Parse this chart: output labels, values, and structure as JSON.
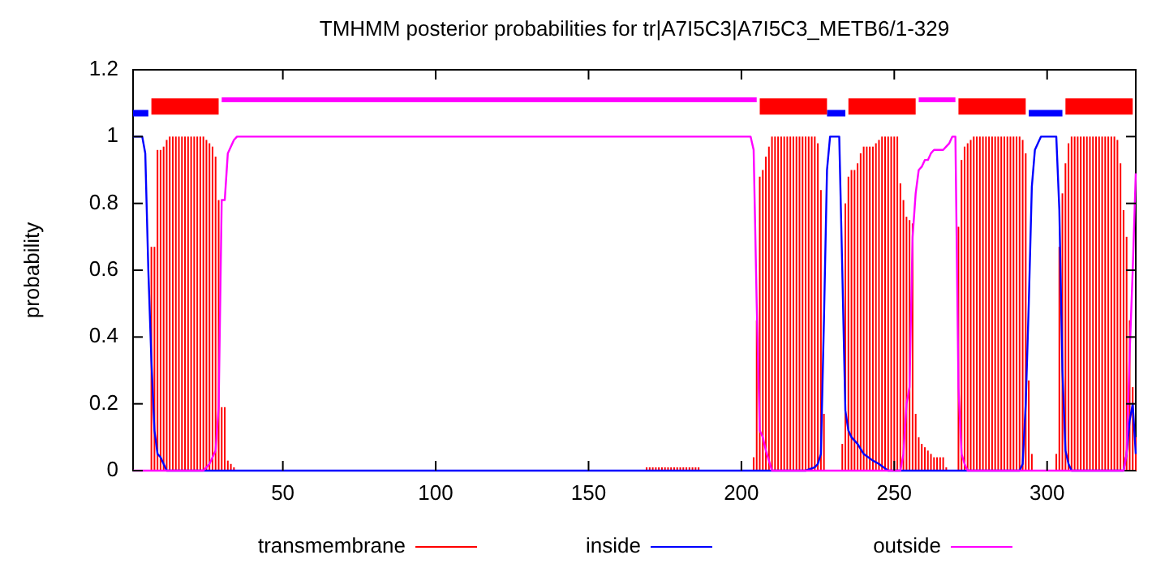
{
  "chart_data": {
    "type": "line",
    "title": "TMHMM posterior probabilities for tr|A7I5C3|A7I5C3_METB6/1-329",
    "ylabel": "probability",
    "xlim": [
      1,
      329
    ],
    "xticks": [
      50,
      100,
      150,
      200,
      250,
      300
    ],
    "ylim": [
      0,
      1.2
    ],
    "yticks": [
      0,
      0.2,
      0.4,
      0.6,
      0.8,
      1,
      1.2
    ],
    "legend": "bottom",
    "series": [
      {
        "name": "transmembrane",
        "type": "bar",
        "color": "#ff0000",
        "x": [
          7,
          8,
          9,
          10,
          11,
          12,
          13,
          14,
          15,
          16,
          17,
          18,
          19,
          20,
          21,
          22,
          23,
          24,
          25,
          26,
          27,
          28,
          29,
          30,
          31,
          32,
          33,
          34,
          169,
          170,
          171,
          172,
          173,
          174,
          175,
          176,
          177,
          178,
          179,
          180,
          181,
          182,
          183,
          184,
          185,
          186,
          204,
          205,
          206,
          207,
          208,
          209,
          210,
          211,
          212,
          213,
          214,
          215,
          216,
          217,
          218,
          219,
          220,
          221,
          222,
          223,
          224,
          225,
          226,
          227,
          233,
          234,
          235,
          236,
          237,
          238,
          239,
          240,
          241,
          242,
          243,
          244,
          245,
          246,
          247,
          248,
          249,
          250,
          251,
          252,
          253,
          254,
          255,
          256,
          257,
          258,
          259,
          260,
          261,
          262,
          263,
          264,
          265,
          266,
          267,
          271,
          272,
          273,
          274,
          275,
          276,
          277,
          278,
          279,
          280,
          281,
          282,
          283,
          284,
          285,
          286,
          287,
          288,
          289,
          290,
          291,
          292,
          293,
          294,
          295,
          303,
          304,
          305,
          306,
          307,
          308,
          309,
          310,
          311,
          312,
          313,
          314,
          315,
          316,
          317,
          318,
          319,
          320,
          321,
          322,
          323,
          324,
          325,
          326,
          327,
          328,
          329
        ],
        "values": [
          0.67,
          0.67,
          0.96,
          0.96,
          0.97,
          0.99,
          1,
          1,
          1,
          1,
          1,
          1,
          1,
          1,
          1,
          1,
          1,
          1,
          0.99,
          0.98,
          0.97,
          0.94,
          0.81,
          0.19,
          0.19,
          0.03,
          0.02,
          0.01,
          0.01,
          0.01,
          0.01,
          0.01,
          0.01,
          0.01,
          0.01,
          0.01,
          0.01,
          0.01,
          0.01,
          0.01,
          0.01,
          0.01,
          0.01,
          0.01,
          0.01,
          0.01,
          0.04,
          0.45,
          0.88,
          0.9,
          0.94,
          0.97,
          1,
          1,
          1,
          1,
          1,
          1,
          1,
          1,
          1,
          1,
          1,
          1,
          1,
          1,
          1,
          0.98,
          0.84,
          0.17,
          0.08,
          0.8,
          0.88,
          0.9,
          0.9,
          0.92,
          0.95,
          0.97,
          0.97,
          0.97,
          0.97,
          0.98,
          0.99,
          1,
          1,
          1,
          1,
          1,
          1,
          0.86,
          0.81,
          0.76,
          0.75,
          0.74,
          0.17,
          0.1,
          0.08,
          0.07,
          0.06,
          0.05,
          0.04,
          0.04,
          0.04,
          0.04,
          0.01,
          0.73,
          0.93,
          0.97,
          0.98,
          0.99,
          1,
          1,
          1,
          1,
          1,
          1,
          1,
          1,
          1,
          1,
          1,
          1,
          1,
          1,
          1,
          1,
          0.99,
          0.95,
          0.27,
          0.05,
          0.05,
          0.67,
          0.83,
          0.92,
          0.98,
          1,
          1,
          1,
          1,
          1,
          1,
          1,
          1,
          1,
          1,
          1,
          1,
          1,
          1,
          1,
          0.99,
          0.92,
          0.78,
          0.7,
          0.45,
          0.25,
          0.1
        ]
      },
      {
        "name": "inside",
        "color": "#0000ff",
        "x": [
          1,
          4,
          5,
          6,
          7,
          8,
          9,
          10,
          11,
          12,
          221,
          224,
          225,
          226,
          227,
          228,
          229,
          232,
          233,
          234,
          235,
          236,
          238,
          240,
          243,
          245,
          248,
          291,
          292,
          293,
          294,
          295,
          296,
          297,
          298,
          303,
          304,
          305,
          306,
          307,
          308,
          325,
          326,
          327,
          328,
          329
        ],
        "values": [
          1,
          1,
          0.95,
          0.6,
          0.33,
          0.12,
          0.05,
          0.04,
          0.02,
          0,
          0,
          0.01,
          0.02,
          0.05,
          0.45,
          0.9,
          1,
          1,
          0.6,
          0.18,
          0.12,
          0.1,
          0.08,
          0.05,
          0.03,
          0.02,
          0,
          0,
          0.02,
          0.2,
          0.5,
          0.85,
          0.96,
          0.98,
          1,
          1,
          0.78,
          0.3,
          0.06,
          0.02,
          0,
          0,
          0.05,
          0.15,
          0.2,
          0.05
        ]
      },
      {
        "name": "outside",
        "color": "#ff00ff",
        "x": [
          1,
          24,
          26,
          27,
          28,
          29,
          30,
          31,
          32,
          33,
          34,
          35,
          203,
          204,
          205,
          206,
          207,
          208,
          209,
          210,
          252,
          253,
          254,
          255,
          256,
          257,
          258,
          259,
          260,
          261,
          262,
          263,
          266,
          267,
          268,
          269,
          270,
          271,
          272,
          273,
          274,
          325,
          326,
          327,
          328,
          329
        ],
        "values": [
          0,
          0,
          0.02,
          0.04,
          0.06,
          0.19,
          0.81,
          0.81,
          0.95,
          0.97,
          0.99,
          1,
          1,
          0.96,
          0.5,
          0.12,
          0.1,
          0.06,
          0.03,
          0,
          0,
          0.05,
          0.2,
          0.25,
          0.7,
          0.83,
          0.9,
          0.91,
          0.93,
          0.93,
          0.95,
          0.96,
          0.96,
          0.97,
          0.98,
          1,
          1,
          0.25,
          0.05,
          0.02,
          0,
          0,
          0.05,
          0.35,
          0.6,
          0.89
        ]
      },
      {
        "color": "#0000ff",
        "x": [
          1,
          6,
          7,
          228,
          234,
          235,
          294,
          305
        ],
        "values": [
          1.07,
          1.07,
          null,
          1.07,
          1.07,
          null,
          1.07,
          1.07
        ]
      },
      {
        "color": "#ff0000",
        "x": [
          7,
          29,
          30,
          206,
          228,
          229,
          235,
          257,
          258,
          271,
          293,
          294,
          306,
          328
        ],
        "values": [
          1.09,
          1.09,
          null,
          1.09,
          1.09,
          null,
          1.09,
          1.09,
          null,
          1.09,
          1.09,
          null,
          1.09,
          1.09
        ]
      },
      {
        "color": "#ff00ff",
        "x": [
          30,
          205,
          206,
          258,
          270
        ],
        "values": [
          1.11,
          1.11,
          null,
          1.11,
          1.11
        ]
      }
    ]
  }
}
